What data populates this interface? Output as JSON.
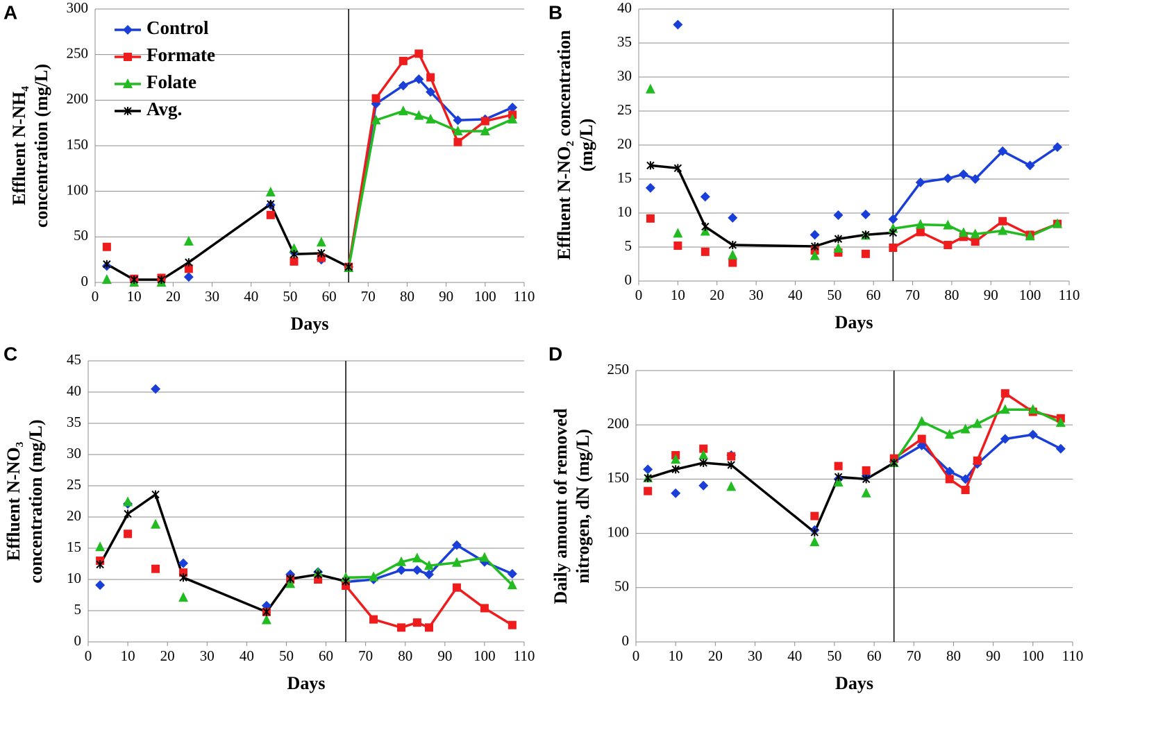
{
  "chart_data": [
    {
      "type": "line",
      "label": "A",
      "ylabel": [
        "Effluent N-NH₄",
        "concentration (mg/L)"
      ],
      "xlabel": "Days",
      "x": [
        3,
        10,
        17,
        24,
        45,
        51,
        58,
        65,
        72,
        79,
        83,
        86,
        93,
        100,
        107
      ],
      "xlim": [
        0,
        110
      ],
      "xticks": [
        0,
        10,
        20,
        30,
        40,
        50,
        60,
        70,
        80,
        90,
        100,
        110
      ],
      "ylim": [
        0,
        300
      ],
      "yticks": [
        0,
        50,
        100,
        150,
        200,
        250,
        300
      ],
      "grid": true,
      "vline": 65,
      "legend": "upper left",
      "series": [
        {
          "name": "Control",
          "color": "#1a3fd9",
          "marker": "diamond",
          "line": "right-of-vline",
          "values": [
            18,
            3,
            4,
            6,
            85,
            33,
            25,
            17,
            196,
            216,
            223,
            209,
            178,
            179,
            192
          ]
        },
        {
          "name": "Formate",
          "color": "#ee1c1c",
          "marker": "square",
          "line": "right-of-vline",
          "values": [
            39,
            4,
            5,
            15,
            74,
            23,
            27,
            17,
            202,
            243,
            251,
            225,
            154,
            177,
            184
          ]
        },
        {
          "name": "Folate",
          "color": "#22bb22",
          "marker": "triangle",
          "line": "right-of-vline",
          "values": [
            3,
            0,
            0,
            45,
            99,
            37,
            44,
            16,
            178,
            188,
            183,
            179,
            166,
            166,
            179
          ]
        },
        {
          "name": "Avg.",
          "color": "#000000",
          "marker": "star",
          "line": "full",
          "values": [
            20,
            3,
            3,
            22,
            86,
            31,
            32,
            17,
            null,
            null,
            null,
            null,
            null,
            null,
            null
          ]
        }
      ]
    },
    {
      "type": "line",
      "label": "B",
      "ylabel": [
        "Effluent N-NO₂ concentration",
        "(mg/L)"
      ],
      "xlabel": "Days",
      "x": [
        3,
        10,
        17,
        24,
        45,
        51,
        58,
        65,
        72,
        79,
        83,
        86,
        93,
        100,
        107
      ],
      "xlim": [
        0,
        110
      ],
      "xticks": [
        0,
        10,
        20,
        30,
        40,
        50,
        60,
        70,
        80,
        90,
        100,
        110
      ],
      "ylim": [
        0,
        40
      ],
      "yticks": [
        0,
        5,
        10,
        15,
        20,
        25,
        30,
        35,
        40
      ],
      "grid": true,
      "vline": 65,
      "series": [
        {
          "color": "#1a3fd9",
          "marker": "diamond",
          "line": "right-of-vline",
          "values": [
            13.7,
            37.7,
            12.4,
            9.3,
            6.8,
            9.7,
            9.8,
            9.1,
            14.5,
            15.1,
            15.7,
            15.0,
            19.1,
            17.0,
            19.7
          ]
        },
        {
          "color": "#ee1c1c",
          "marker": "square",
          "line": "right-of-vline",
          "values": [
            9.2,
            5.2,
            4.3,
            2.7,
            4.5,
            4.2,
            4.0,
            4.9,
            7.2,
            5.3,
            6.5,
            5.8,
            8.8,
            6.8,
            8.4
          ]
        },
        {
          "color": "#22bb22",
          "marker": "triangle",
          "line": "right-of-vline",
          "values": [
            28.2,
            7.0,
            7.3,
            3.8,
            3.7,
            4.8,
            6.7,
            7.7,
            8.3,
            8.2,
            7.1,
            6.9,
            7.4,
            6.6,
            8.4
          ]
        },
        {
          "color": "#000000",
          "marker": "star",
          "line": "full",
          "values": [
            17.0,
            16.6,
            8.0,
            5.3,
            5.1,
            6.2,
            6.8,
            7.1,
            null,
            null,
            null,
            null,
            null,
            null,
            null
          ]
        }
      ]
    },
    {
      "type": "line",
      "label": "C",
      "ylabel": [
        "Effluent N-NO₃",
        "concentration (mg/L)"
      ],
      "xlabel": "Days",
      "x": [
        3,
        10,
        17,
        24,
        45,
        51,
        58,
        65,
        72,
        79,
        83,
        86,
        93,
        100,
        107
      ],
      "xlim": [
        0,
        110
      ],
      "xticks": [
        0,
        10,
        20,
        30,
        40,
        50,
        60,
        70,
        80,
        90,
        100,
        110
      ],
      "ylim": [
        0,
        45
      ],
      "yticks": [
        0,
        5,
        10,
        15,
        20,
        25,
        30,
        35,
        40,
        45
      ],
      "grid": true,
      "vline": 65,
      "series": [
        {
          "color": "#1a3fd9",
          "marker": "diamond",
          "line": "right-of-vline",
          "values": [
            9.1,
            22.1,
            40.5,
            12.6,
            5.8,
            10.8,
            11.2,
            9.6,
            10.0,
            11.5,
            11.5,
            10.8,
            15.5,
            12.8,
            10.9
          ]
        },
        {
          "color": "#ee1c1c",
          "marker": "square",
          "line": "right-of-vline",
          "values": [
            13.0,
            17.3,
            11.7,
            11.1,
            4.8,
            10.0,
            10.0,
            9.0,
            3.6,
            2.3,
            3.1,
            2.3,
            8.7,
            5.4,
            2.7
          ]
        },
        {
          "color": "#22bb22",
          "marker": "triangle",
          "line": "right-of-vline",
          "values": [
            15.2,
            22.4,
            18.8,
            7.1,
            3.5,
            9.3,
            11.1,
            10.3,
            10.4,
            12.8,
            13.4,
            12.2,
            12.7,
            13.5,
            9.1
          ]
        },
        {
          "color": "#000000",
          "marker": "star",
          "line": "full",
          "values": [
            12.4,
            20.5,
            23.6,
            10.3,
            4.8,
            10.1,
            10.8,
            9.7,
            null,
            null,
            null,
            null,
            null,
            null,
            null
          ]
        }
      ]
    },
    {
      "type": "line",
      "label": "D",
      "ylabel": [
        "Daily amount of removed",
        "nitrogen, dN (mg/L)"
      ],
      "xlabel": "Days",
      "x": [
        3,
        10,
        17,
        24,
        45,
        51,
        58,
        65,
        72,
        79,
        83,
        86,
        93,
        100,
        107
      ],
      "xlim": [
        0,
        110
      ],
      "xticks": [
        0,
        10,
        20,
        30,
        40,
        50,
        60,
        70,
        80,
        90,
        100,
        110
      ],
      "ylim": [
        0,
        250
      ],
      "yticks": [
        0,
        50,
        100,
        150,
        200,
        250
      ],
      "grid": true,
      "vline": 65,
      "series": [
        {
          "color": "#1a3fd9",
          "marker": "diamond",
          "line": "right-of-vline",
          "values": [
            159,
            137,
            144,
            172,
            103,
            150,
            153,
            166,
            181,
            157,
            150,
            164,
            187,
            191,
            178
          ]
        },
        {
          "color": "#ee1c1c",
          "marker": "square",
          "line": "right-of-vline",
          "values": [
            139,
            172,
            178,
            171,
            116,
            162,
            158,
            169,
            187,
            150,
            140,
            167,
            229,
            212,
            206
          ]
        },
        {
          "color": "#22bb22",
          "marker": "triangle",
          "line": "right-of-vline",
          "values": [
            151,
            168,
            172,
            143,
            92,
            147,
            137,
            165,
            203,
            191,
            196,
            201,
            214,
            214,
            202
          ]
        },
        {
          "color": "#000000",
          "marker": "star",
          "line": "full",
          "values": [
            151,
            159,
            165,
            163,
            101,
            152,
            150,
            165,
            null,
            null,
            null,
            null,
            null,
            null,
            null
          ]
        }
      ]
    }
  ]
}
